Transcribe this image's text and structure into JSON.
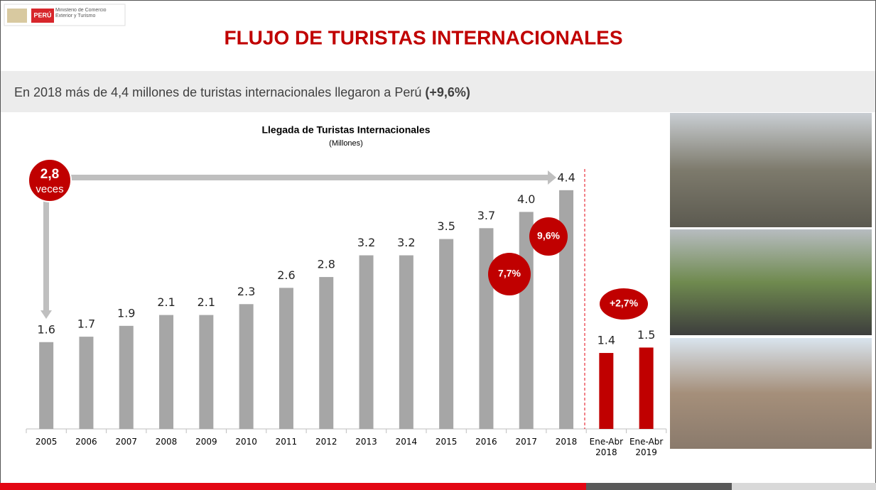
{
  "header": {
    "logo_country": "PERÚ",
    "logo_ministry": "Ministerio de Comercio Exterior y Turismo",
    "title": "FLUJO DE TURISTAS INTERNACIONALES",
    "headline": "En 2018 más de 4,4 millones de turistas internacionales llegaron a Perú",
    "headline_bold": "(+9,6%)"
  },
  "chart_data": {
    "type": "bar",
    "title": "Llegada de Turistas Internacionales",
    "subtitle": "(Millones)",
    "categories": [
      "2005",
      "2006",
      "2007",
      "2008",
      "2009",
      "2010",
      "2011",
      "2012",
      "2013",
      "2014",
      "2015",
      "2016",
      "2017",
      "2018",
      "Ene-Abr 2018",
      "Ene-Abr 2019"
    ],
    "values": [
      1.6,
      1.7,
      1.9,
      2.1,
      2.1,
      2.3,
      2.6,
      2.8,
      3.2,
      3.2,
      3.5,
      3.7,
      4.0,
      4.4,
      1.4,
      1.5
    ],
    "value_labels": [
      "1.6",
      "1.7",
      "1.9",
      "2.1",
      "2.1",
      "2.3",
      "2.6",
      "2.8",
      "3.2",
      "3.2",
      "3.5",
      "3.7",
      "4.0",
      "4.4",
      "1.4",
      "1.5"
    ],
    "colors": [
      "#a6a6a6",
      "#a6a6a6",
      "#a6a6a6",
      "#a6a6a6",
      "#a6a6a6",
      "#a6a6a6",
      "#a6a6a6",
      "#a6a6a6",
      "#a6a6a6",
      "#a6a6a6",
      "#a6a6a6",
      "#a6a6a6",
      "#a6a6a6",
      "#a6a6a6",
      "#c00000",
      "#c00000"
    ],
    "annotations": {
      "growth_number": "2,8",
      "growth_word": "veces",
      "rate_2017": "7,7%",
      "rate_2018": "9,6%",
      "rate_period": "+2,7%"
    }
  }
}
